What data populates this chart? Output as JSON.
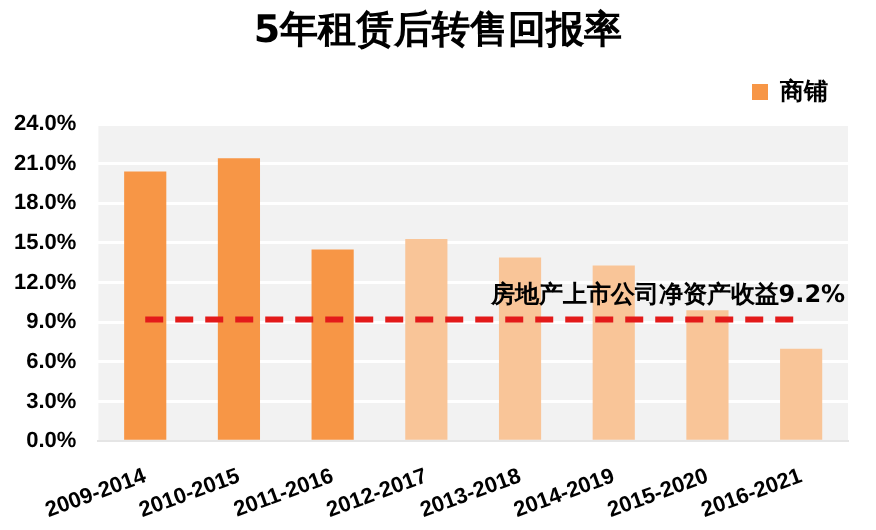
{
  "chart_data": {
    "type": "bar",
    "title": "5年租赁后转售回报率",
    "categories": [
      "2009-2014",
      "2010-2015",
      "2011-2016",
      "2012-2017",
      "2013-2018",
      "2014-2019",
      "2015-2020",
      "2016-2021"
    ],
    "series": [
      {
        "name": "商铺",
        "color": "#f79646",
        "colors": [
          "#f79646",
          "#f79646",
          "#f79646",
          "#f9c598",
          "#f9c598",
          "#f9c598",
          "#f9c598",
          "#f9c598"
        ],
        "values": [
          20.4,
          21.4,
          14.5,
          15.3,
          13.9,
          13.3,
          9.9,
          7.0
        ]
      }
    ],
    "ylim": [
      0,
      24
    ],
    "yticks": [
      {
        "value": 0,
        "label": "0.0%"
      },
      {
        "value": 3,
        "label": "3.0%"
      },
      {
        "value": 6,
        "label": "6.0%"
      },
      {
        "value": 9,
        "label": "9.0%"
      },
      {
        "value": 12,
        "label": "12.0%"
      },
      {
        "value": 15,
        "label": "15.0%"
      },
      {
        "value": 18,
        "label": "18.0%"
      },
      {
        "value": 21,
        "label": "21.0%"
      },
      {
        "value": 24,
        "label": "24.0%"
      }
    ],
    "ref_lines": [
      {
        "axis": "y",
        "value": 9.2,
        "label": "房地产上市公司净资产收益9.2%",
        "color": "#e31a1a",
        "line_style": "dashed"
      }
    ],
    "grid": "y",
    "legend": "top right"
  }
}
